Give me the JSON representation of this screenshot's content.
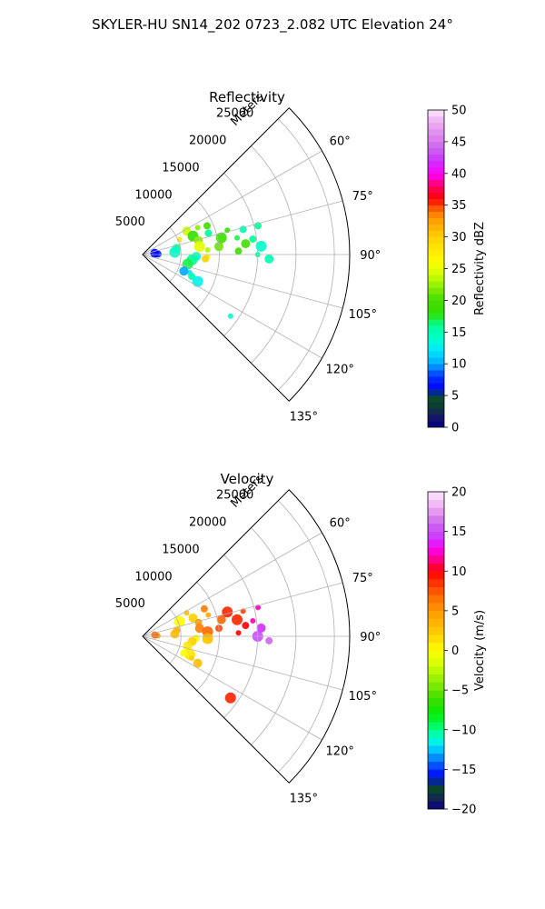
{
  "figure_title": "SKYLER-HU  SN14_202  0723_2.082 UTC Elevation 24°",
  "chart_data": [
    {
      "type": "polar-sector",
      "title": "Reflectivity",
      "radial_label": "Meters",
      "radial_ticks": [
        5000,
        10000,
        15000,
        20000,
        25000
      ],
      "rlim": [
        0,
        27000
      ],
      "azimuth_range_deg": [
        45,
        135
      ],
      "azimuth_ticks_deg": [
        60,
        75,
        90,
        105,
        120,
        135
      ],
      "azimuth_grid_step_deg": 15,
      "grid": true,
      "colorbar": {
        "label": "Reflectivity dBZ",
        "range": [
          0,
          50
        ],
        "ticks": [
          0,
          5,
          10,
          15,
          20,
          25,
          30,
          35,
          40,
          45,
          50
        ],
        "levels": 50,
        "stops": [
          [
            0,
            "#000080"
          ],
          [
            2,
            "#1a1a66"
          ],
          [
            3,
            "#0b3b2e"
          ],
          [
            5,
            "#0a4d2c"
          ],
          [
            6,
            "#0000ff"
          ],
          [
            8,
            "#0033ff"
          ],
          [
            10,
            "#00aaff"
          ],
          [
            12,
            "#00e5ff"
          ],
          [
            14,
            "#00ffcc"
          ],
          [
            16,
            "#00ff99"
          ],
          [
            18,
            "#33e000"
          ],
          [
            20,
            "#44dd00"
          ],
          [
            22,
            "#88ee00"
          ],
          [
            24,
            "#ccff00"
          ],
          [
            26,
            "#ffff00"
          ],
          [
            30,
            "#ffd000"
          ],
          [
            33,
            "#ff9900"
          ],
          [
            35,
            "#ff4400"
          ],
          [
            36,
            "#ff0000"
          ],
          [
            38,
            "#ff0066"
          ],
          [
            40,
            "#ff00ff"
          ],
          [
            42,
            "#cc33ff"
          ],
          [
            44,
            "#cc66ee"
          ],
          [
            46,
            "#dd88ee"
          ],
          [
            48,
            "#eeaaf4"
          ],
          [
            50,
            "#fbe6fb"
          ]
        ]
      },
      "echo_regions": [
        {
          "az": 64,
          "r": 8000,
          "value": 22
        },
        {
          "az": 66,
          "r": 9200,
          "value": 20
        },
        {
          "az": 62,
          "r": 6500,
          "value": 24
        },
        {
          "az": 70,
          "r": 7000,
          "value": 18
        },
        {
          "az": 68,
          "r": 5200,
          "value": 28
        },
        {
          "az": 72,
          "r": 9000,
          "value": 16
        },
        {
          "az": 76,
          "r": 7500,
          "value": 22
        },
        {
          "az": 78,
          "r": 10500,
          "value": 19
        },
        {
          "az": 80,
          "r": 12500,
          "value": 17
        },
        {
          "az": 82,
          "r": 14500,
          "value": 16
        },
        {
          "az": 84,
          "r": 13500,
          "value": 20
        },
        {
          "az": 86,
          "r": 15500,
          "value": 14
        },
        {
          "az": 74,
          "r": 11500,
          "value": 18
        },
        {
          "az": 76,
          "r": 13500,
          "value": 15
        },
        {
          "az": 84,
          "r": 10000,
          "value": 21
        },
        {
          "az": 82,
          "r": 7500,
          "value": 25
        },
        {
          "az": 86,
          "r": 8500,
          "value": 23
        },
        {
          "az": 88,
          "r": 12500,
          "value": 19
        },
        {
          "az": 80,
          "r": 4500,
          "value": 16
        },
        {
          "az": 86,
          "r": 4200,
          "value": 14
        },
        {
          "az": 92,
          "r": 8500,
          "value": 25
        },
        {
          "az": 94,
          "r": 8200,
          "value": 30
        },
        {
          "az": 92,
          "r": 7000,
          "value": 14
        },
        {
          "az": 96,
          "r": 6500,
          "value": 16
        },
        {
          "az": 90,
          "r": 15000,
          "value": 16
        },
        {
          "az": 76,
          "r": 15500,
          "value": 16
        },
        {
          "az": 92,
          "r": 16500,
          "value": 15
        },
        {
          "az": 102,
          "r": 6000,
          "value": 17
        },
        {
          "az": 111,
          "r": 6600,
          "value": 12
        },
        {
          "az": 114,
          "r": 7000,
          "value": 15
        },
        {
          "az": 112,
          "r": 5800,
          "value": 10
        },
        {
          "az": 116,
          "r": 8000,
          "value": 13
        },
        {
          "az": 125,
          "r": 14000,
          "value": 14
        },
        {
          "az": 88,
          "r": 2000,
          "value": 8
        },
        {
          "az": 84,
          "r": 1600,
          "value": 6
        }
      ]
    },
    {
      "type": "polar-sector",
      "title": "Velocity",
      "radial_label": "Meters",
      "radial_ticks": [
        5000,
        10000,
        15000,
        20000,
        25000
      ],
      "rlim": [
        0,
        27000
      ],
      "azimuth_range_deg": [
        45,
        135
      ],
      "azimuth_ticks_deg": [
        60,
        75,
        90,
        105,
        120,
        135
      ],
      "azimuth_grid_step_deg": 15,
      "grid": true,
      "colorbar": {
        "label": "Velocity (m/s)",
        "range": [
          -20,
          20
        ],
        "ticks": [
          -20,
          -15,
          -10,
          -5,
          0,
          5,
          10,
          15,
          20
        ],
        "levels": 40,
        "stops": [
          [
            -20,
            "#000080"
          ],
          [
            -19,
            "#1a1a66"
          ],
          [
            -18,
            "#0b3b2e"
          ],
          [
            -17,
            "#0a4d2c"
          ],
          [
            -16,
            "#0000ff"
          ],
          [
            -15,
            "#0033ff"
          ],
          [
            -13,
            "#00aaff"
          ],
          [
            -12,
            "#00e5ff"
          ],
          [
            -11,
            "#00ffcc"
          ],
          [
            -10,
            "#00ff88"
          ],
          [
            -8,
            "#00ee00"
          ],
          [
            -6,
            "#44dd00"
          ],
          [
            -4,
            "#88ee00"
          ],
          [
            -2,
            "#ccff00"
          ],
          [
            0,
            "#ffff00"
          ],
          [
            2,
            "#ffd000"
          ],
          [
            5,
            "#ff9900"
          ],
          [
            7,
            "#ff6600"
          ],
          [
            9,
            "#ff2200"
          ],
          [
            10,
            "#ff0000"
          ],
          [
            11,
            "#ff0066"
          ],
          [
            13,
            "#ff00ff"
          ],
          [
            14,
            "#cc33ff"
          ],
          [
            16,
            "#cc66ee"
          ],
          [
            17,
            "#dd88ee"
          ],
          [
            18,
            "#eeaaf4"
          ],
          [
            20,
            "#fbe6fb"
          ]
        ]
      },
      "echo_regions": [
        {
          "az": 62,
          "r": 6500,
          "value": 3
        },
        {
          "az": 66,
          "r": 8800,
          "value": 6
        },
        {
          "az": 70,
          "r": 7000,
          "value": 2
        },
        {
          "az": 68,
          "r": 5200,
          "value": 0
        },
        {
          "az": 72,
          "r": 9000,
          "value": 4
        },
        {
          "az": 76,
          "r": 7500,
          "value": 5
        },
        {
          "az": 78,
          "r": 10500,
          "value": 7
        },
        {
          "az": 80,
          "r": 12500,
          "value": 9
        },
        {
          "az": 82,
          "r": 14500,
          "value": 12
        },
        {
          "az": 84,
          "r": 13500,
          "value": 10
        },
        {
          "az": 86,
          "r": 15500,
          "value": 14
        },
        {
          "az": 74,
          "r": 11500,
          "value": 9
        },
        {
          "az": 76,
          "r": 13500,
          "value": 8
        },
        {
          "az": 84,
          "r": 10000,
          "value": 8
        },
        {
          "az": 82,
          "r": 7500,
          "value": 6
        },
        {
          "az": 86,
          "r": 8500,
          "value": 7
        },
        {
          "az": 88,
          "r": 12500,
          "value": 10
        },
        {
          "az": 80,
          "r": 4500,
          "value": 4
        },
        {
          "az": 86,
          "r": 4200,
          "value": 3
        },
        {
          "az": 92,
          "r": 8500,
          "value": 3
        },
        {
          "az": 94,
          "r": 8200,
          "value": 2
        },
        {
          "az": 92,
          "r": 7000,
          "value": 0
        },
        {
          "az": 96,
          "r": 6500,
          "value": 2
        },
        {
          "az": 90,
          "r": 15000,
          "value": 15
        },
        {
          "az": 76,
          "r": 15500,
          "value": 12
        },
        {
          "az": 92,
          "r": 16500,
          "value": 16
        },
        {
          "az": 102,
          "r": 6000,
          "value": 1
        },
        {
          "az": 111,
          "r": 6600,
          "value": 1
        },
        {
          "az": 114,
          "r": 7000,
          "value": 2
        },
        {
          "az": 112,
          "r": 5800,
          "value": 0
        },
        {
          "az": 116,
          "r": 8000,
          "value": 3
        },
        {
          "az": 125,
          "r": 14000,
          "value": 9
        },
        {
          "az": 88,
          "r": 2000,
          "value": 5
        },
        {
          "az": 84,
          "r": 1600,
          "value": 7
        }
      ]
    }
  ]
}
